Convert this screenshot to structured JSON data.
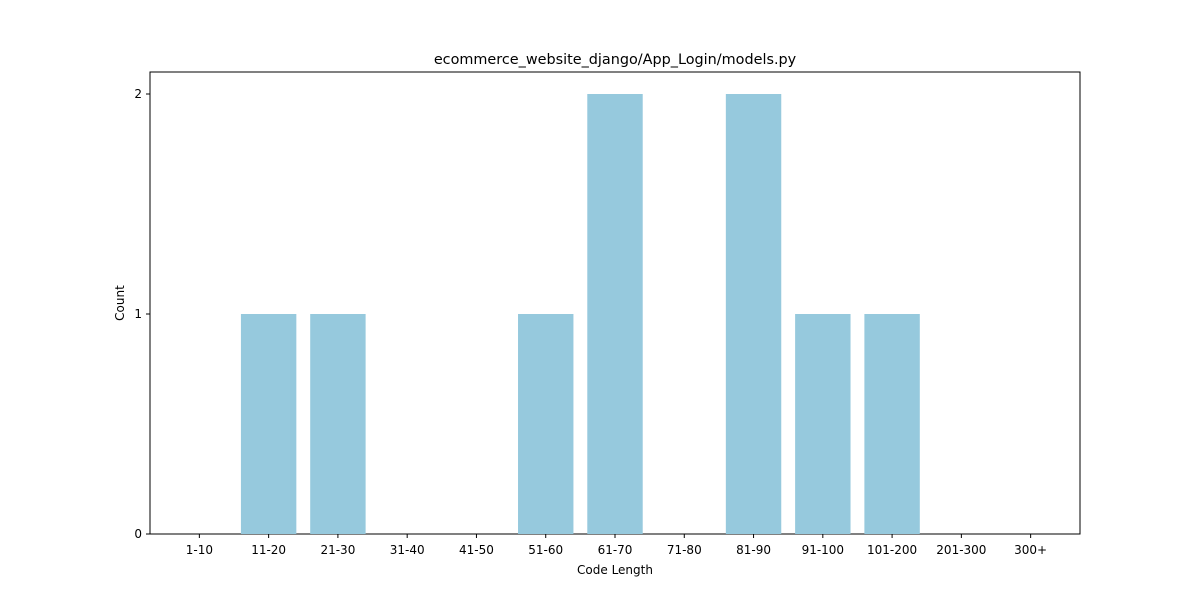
{
  "chart_data": {
    "type": "bar",
    "title": "ecommerce_website_django/App_Login/models.py",
    "xlabel": "Code Length",
    "ylabel": "Count",
    "categories": [
      "1-10",
      "11-20",
      "21-30",
      "31-40",
      "41-50",
      "51-60",
      "61-70",
      "71-80",
      "81-90",
      "91-100",
      "101-200",
      "201-300",
      "300+"
    ],
    "values": [
      0,
      1,
      1,
      0,
      0,
      1,
      2,
      0,
      2,
      1,
      1,
      0,
      0
    ],
    "yticks": [
      "0",
      "1",
      "2"
    ],
    "ylim": [
      0,
      2.1
    ],
    "grid": false,
    "bar_color": "#96c9dd"
  }
}
